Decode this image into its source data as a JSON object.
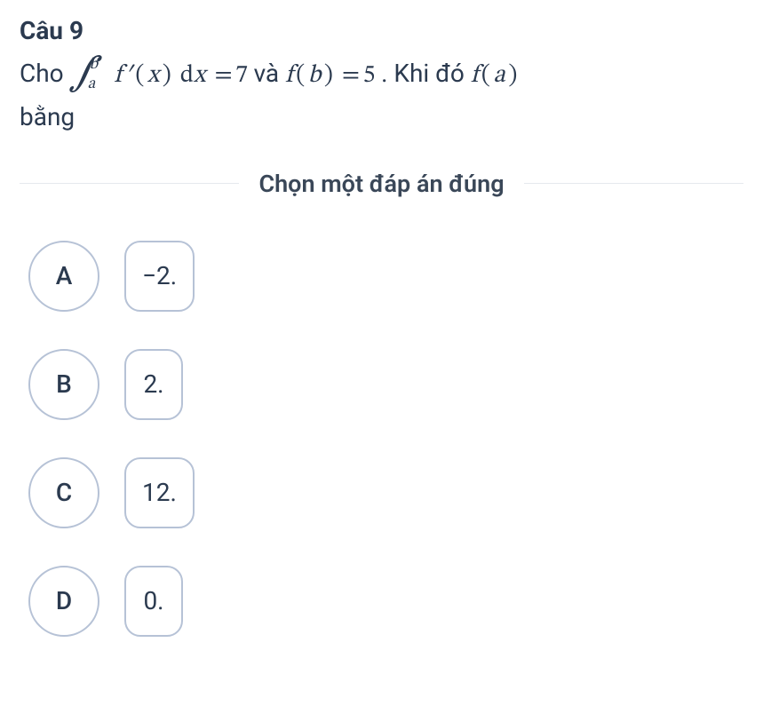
{
  "question": {
    "number_label": "Câu 9",
    "stem_prefix": "Cho ",
    "integral": {
      "lower": "a",
      "upper": "b"
    },
    "integrand_f": "f",
    "integrand_prime": "′",
    "integrand_var": "x",
    "diff_d": "d",
    "diff_var": "x",
    "eq1_rhs": "7",
    "and_word": " và ",
    "fb_f": "f",
    "fb_arg": "b",
    "fb_rhs": "5",
    "then_word": ". Khi đó ",
    "fa_f": "f",
    "fa_arg": "a",
    "stem_suffix": "bằng"
  },
  "instruction": "Chọn một đáp án đúng",
  "options": [
    {
      "letter": "A",
      "value": "−2."
    },
    {
      "letter": "B",
      "value": "2."
    },
    {
      "letter": "C",
      "value": "12."
    },
    {
      "letter": "D",
      "value": "0."
    }
  ],
  "colors": {
    "text": "#2b3a4f",
    "border": "#b6c2d6",
    "divider": "#e6e9ee",
    "background": "#ffffff"
  }
}
